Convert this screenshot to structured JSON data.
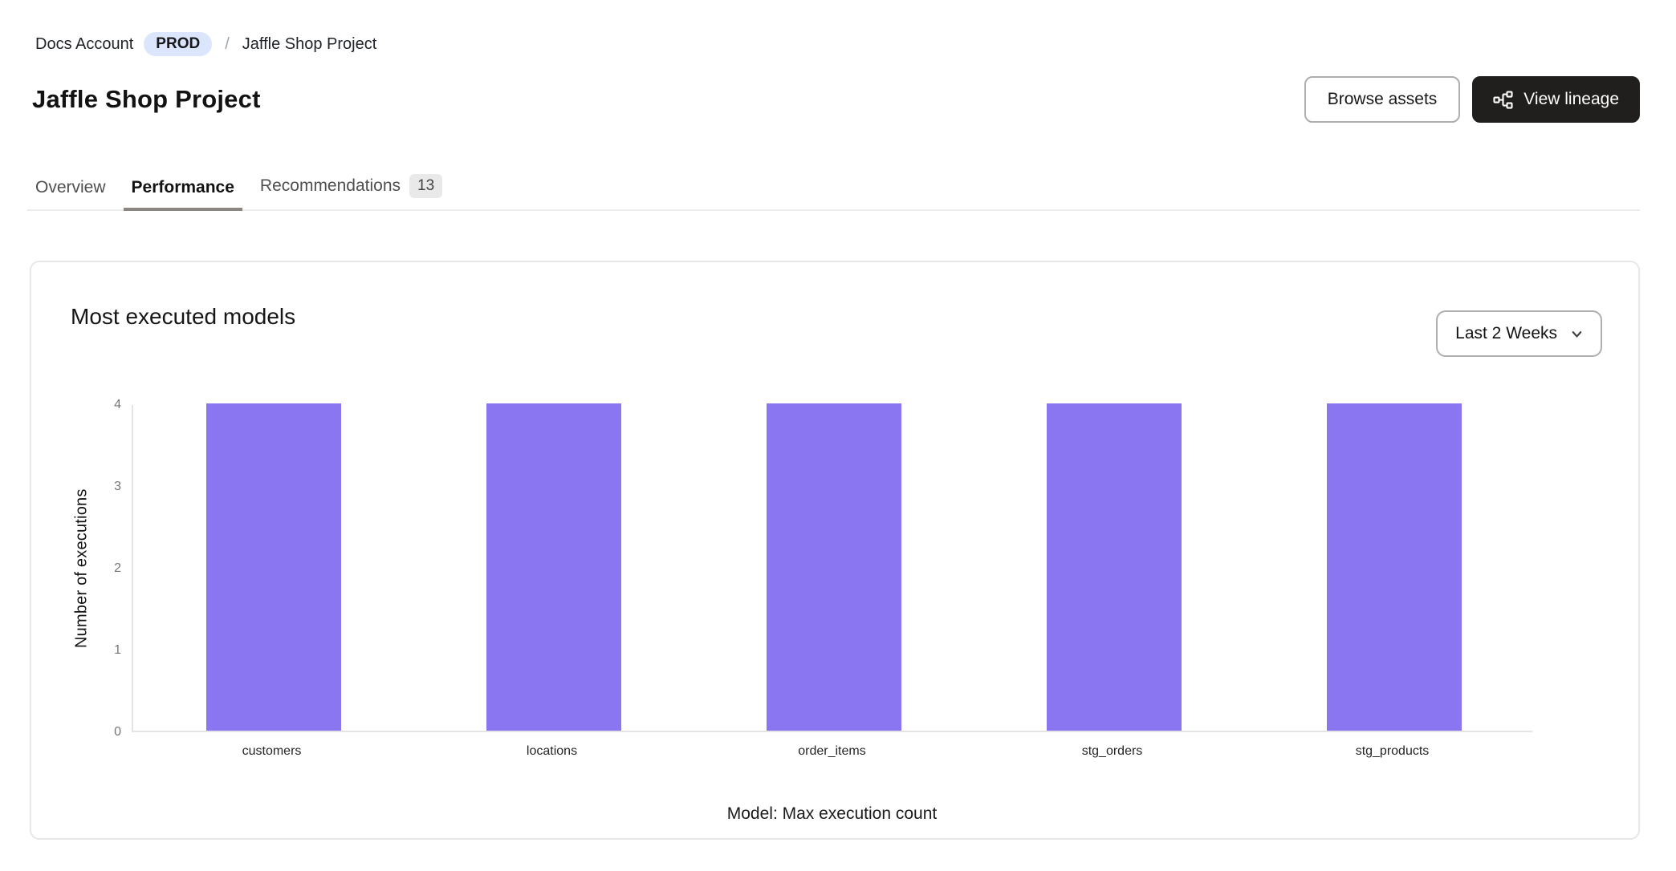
{
  "breadcrumb": {
    "account": "Docs Account",
    "env_badge": "PROD",
    "separator": "/",
    "project": "Jaffle Shop Project"
  },
  "header": {
    "title": "Jaffle Shop Project",
    "browse_assets_label": "Browse assets",
    "view_lineage_label": "View lineage"
  },
  "tabs": [
    {
      "label": "Overview",
      "active": false
    },
    {
      "label": "Performance",
      "active": true
    },
    {
      "label": "Recommendations",
      "active": false,
      "badge": "13"
    }
  ],
  "card": {
    "title": "Most executed models",
    "time_range_value": "Last 2 Weeks"
  },
  "chart_data": {
    "type": "bar",
    "title": "Most executed models",
    "categories": [
      "customers",
      "locations",
      "order_items",
      "stg_orders",
      "stg_products"
    ],
    "values": [
      4,
      4,
      4,
      4,
      4
    ],
    "xlabel": "Model: Max execution count",
    "ylabel": "Number of executions",
    "ylim": [
      0,
      4
    ],
    "yticks": [
      0,
      1,
      2,
      3,
      4
    ],
    "grid": false,
    "legend": false,
    "bar_color": "#8a76f1"
  },
  "colors": {
    "accent_purple": "#8a76f1",
    "env_badge_bg": "#dbe6fd",
    "primary_button_bg": "#211f1e",
    "tab_underline": "#8b8680",
    "card_border": "#e7e7e7",
    "axis_line": "#e4e4e4"
  }
}
